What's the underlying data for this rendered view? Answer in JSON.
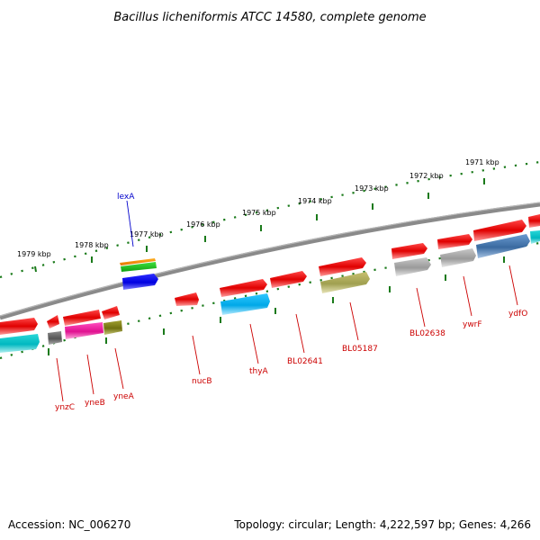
{
  "title": "Bacillus licheniformis ATCC 14580, complete genome",
  "accession": "Accession: NC_006270",
  "topology": "Topology: circular; Length: 4,222,597 bp; Genes: 4,266",
  "colors": {
    "backbone": "#808080",
    "ticks": "#1a7a1a",
    "label_red": "#cc0000",
    "label_blue": "#0000cc"
  },
  "scale": {
    "kbp_labels": [
      "1979 kbp",
      "1978 kbp",
      "1977 kbp",
      "1976 kbp",
      "1975 kbp",
      "1974 kbp",
      "1973 kbp",
      "1972 kbp",
      "1971 kbp"
    ]
  },
  "genes": [
    {
      "label": "lexA",
      "color": "#0000cc"
    },
    {
      "label": "ynzC",
      "color": "#cc0000"
    },
    {
      "label": "yneB",
      "color": "#cc0000"
    },
    {
      "label": "yneA",
      "color": "#cc0000"
    },
    {
      "label": "nucB",
      "color": "#cc0000"
    },
    {
      "label": "thyA",
      "color": "#cc0000"
    },
    {
      "label": "BL02641",
      "color": "#cc0000"
    },
    {
      "label": "BL05187",
      "color": "#cc0000"
    },
    {
      "label": "BL02638",
      "color": "#cc0000"
    },
    {
      "label": "ywrF",
      "color": "#cc0000"
    },
    {
      "label": "ydfO",
      "color": "#cc0000"
    }
  ]
}
